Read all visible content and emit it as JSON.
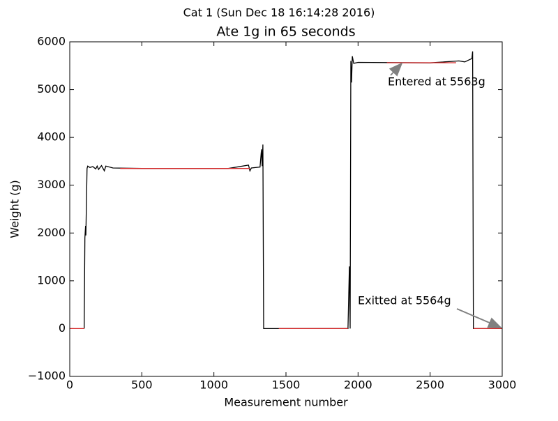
{
  "chart_data": {
    "type": "line",
    "suptitle": "Cat 1 (Sun Dec 18 16:14:28 2016)",
    "title": "Ate 1g in 65 seconds",
    "x_label": "Measurement number",
    "y_label": "Weight (g)",
    "xlim": [
      0,
      3000
    ],
    "ylim": [
      -1000,
      6000
    ],
    "xticks": [
      0,
      500,
      1000,
      1500,
      2000,
      2500,
      3000
    ],
    "yticks": [
      {
        "value": -1000,
        "label": "−1000"
      },
      0,
      1000,
      2000,
      3000,
      4000,
      5000,
      6000
    ],
    "grid": false,
    "series": [
      {
        "color": "#000000",
        "x": [
          100,
          105,
          110,
          112,
          120,
          125,
          140,
          160,
          180,
          190,
          200,
          220,
          240,
          250,
          300,
          500,
          800,
          1100,
          1240,
          1250,
          1260,
          1320,
          1330,
          1335,
          1340,
          1345,
          1400,
          1930,
          1940,
          1945,
          1950,
          1955,
          1960,
          1970,
          2000,
          2500,
          2700,
          2740,
          2790,
          2795,
          2800,
          3000
        ],
        "values": [
          0,
          1900,
          2150,
          1950,
          3350,
          3400,
          3370,
          3390,
          3340,
          3400,
          3330,
          3410,
          3300,
          3400,
          3360,
          3350,
          3350,
          3350,
          3420,
          3300,
          3360,
          3380,
          3750,
          3400,
          3850,
          0,
          0,
          0,
          1300,
          0,
          5600,
          5150,
          5700,
          5550,
          5570,
          5560,
          5600,
          5580,
          5650,
          5800,
          0,
          0
        ]
      },
      {
        "color": "#d62728",
        "x": [
          0,
          100,
          101,
          350,
          1250,
          1251,
          1450,
          1930,
          1931,
          2200,
          2680,
          2681,
          2800,
          3000
        ],
        "values": [
          0,
          0,
          null,
          3350,
          3350,
          null,
          0,
          0,
          null,
          5563,
          5563,
          null,
          0,
          0
        ]
      }
    ],
    "annotations": [
      "Entered at 5563g",
      "Exitted at 5564g"
    ]
  }
}
